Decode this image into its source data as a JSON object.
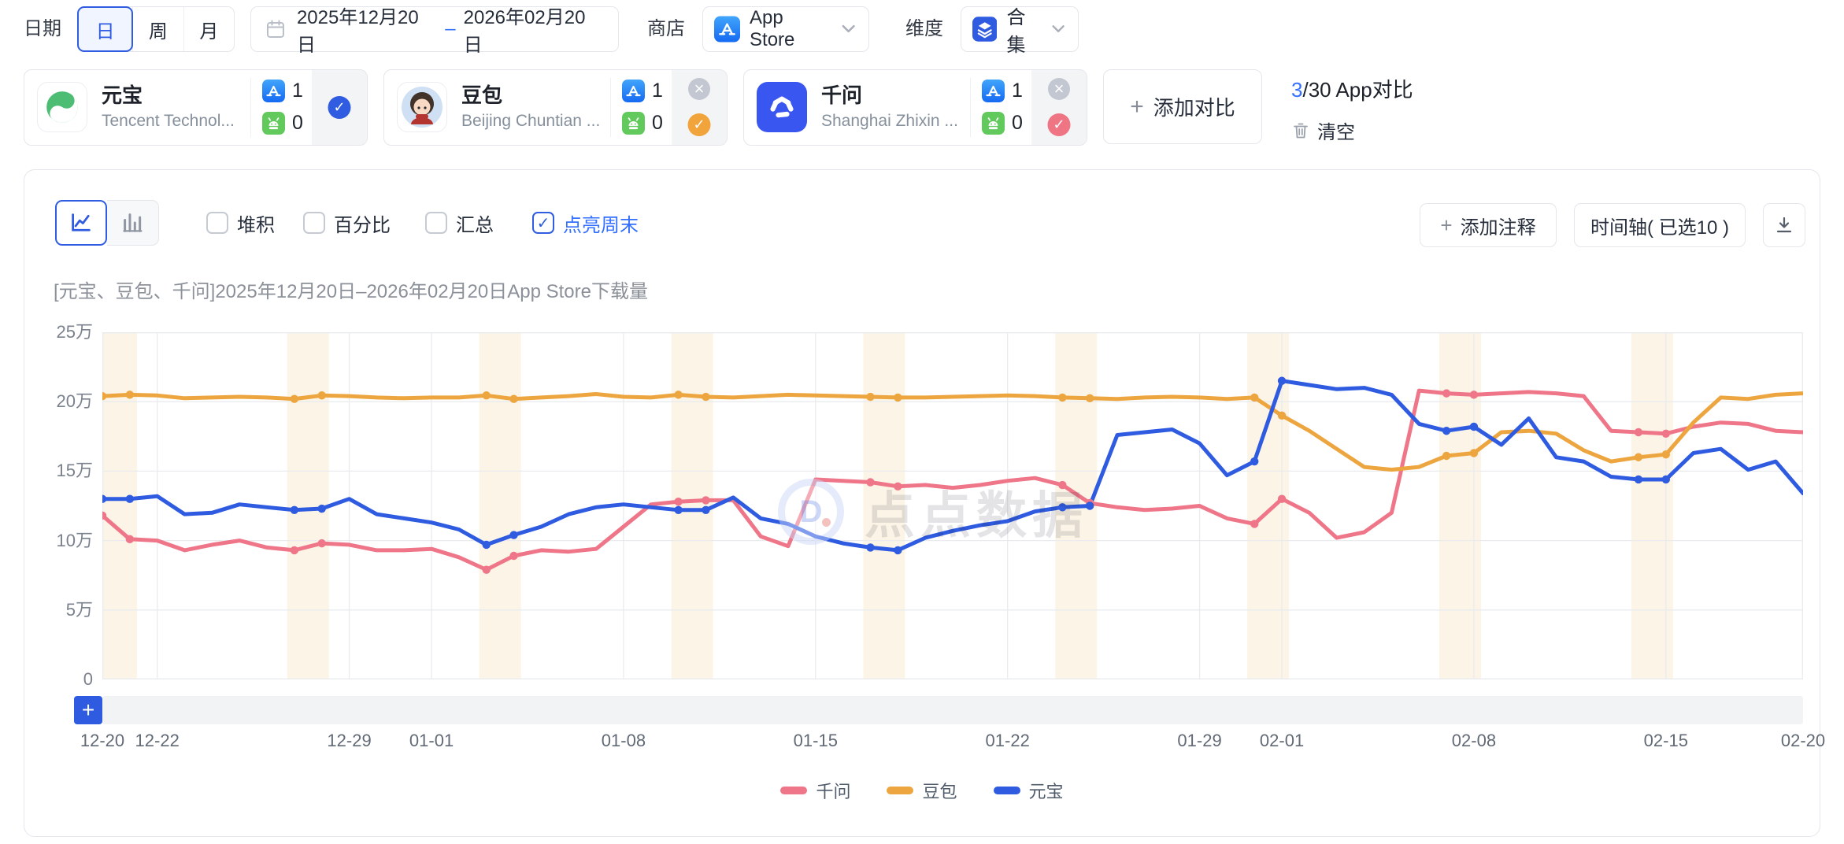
{
  "colors": {
    "accent_text": "#3370ff",
    "accent": "#2f5ce0",
    "series_qianwen": "#ee7688",
    "series_doubao": "#eda63f",
    "series_yuanbao": "#2e5be0",
    "weekend_band": "#fcf4e6"
  },
  "icons": {
    "plus": "+",
    "close": "×",
    "check": "✓"
  },
  "topbar": {
    "date_label": "日期",
    "granularity": [
      {
        "label": "日",
        "selected": true
      },
      {
        "label": "周",
        "selected": false
      },
      {
        "label": "月",
        "selected": false
      }
    ],
    "range": {
      "start": "2025年12月20日",
      "dash": "–",
      "end": "2026年02月20日"
    },
    "store_label": "商店",
    "store_value": "App Store",
    "dimension_label": "维度",
    "dimension_value": "合集"
  },
  "apps": [
    {
      "name": "元宝",
      "company": "Tencent Technol...",
      "ios": "1",
      "android": "0",
      "check_color": "#2f5ce0",
      "closable": false
    },
    {
      "name": "豆包",
      "company": "Beijing Chuntian ...",
      "ios": "1",
      "android": "0",
      "check_color": "#f0a43b",
      "closable": true
    },
    {
      "name": "千问",
      "company": "Shanghai Zhixin ...",
      "ios": "1",
      "android": "0",
      "check_color": "#ef7585",
      "closable": true
    }
  ],
  "compare": {
    "add_label": "添加对比",
    "current": "3",
    "rest": "/30 App对比",
    "clear": "清空"
  },
  "chart_toolbar": {
    "checkboxes": [
      {
        "label": "堆积",
        "checked": false
      },
      {
        "label": "百分比",
        "checked": false
      },
      {
        "label": "汇总",
        "checked": false
      },
      {
        "label": "点亮周末",
        "checked": true
      }
    ],
    "annotate": "添加注释",
    "timeline": "时间轴( 已选10 )"
  },
  "watermark": {
    "text": "点点数据"
  },
  "chart_data": {
    "type": "line",
    "title": "[元宝、豆包、千问]2025年12月20日–2026年02月20日App Store下载量",
    "unit": "万",
    "ylim": [
      0,
      25
    ],
    "grid": true,
    "grid_color": "#e9ebef",
    "weekend_color": "#fcf4e6",
    "legend_position": "bottom",
    "yticks": [
      {
        "v": 0,
        "label": "0"
      },
      {
        "v": 5,
        "label": "5万"
      },
      {
        "v": 10,
        "label": "10万"
      },
      {
        "v": 15,
        "label": "15万"
      },
      {
        "v": 20,
        "label": "20万"
      },
      {
        "v": 25,
        "label": "25万"
      }
    ],
    "x": [
      "12-20",
      "12-21",
      "12-22",
      "12-23",
      "12-24",
      "12-25",
      "12-26",
      "12-27",
      "12-28",
      "12-29",
      "12-30",
      "12-31",
      "01-01",
      "01-02",
      "01-03",
      "01-04",
      "01-05",
      "01-06",
      "01-07",
      "01-08",
      "01-09",
      "01-10",
      "01-11",
      "01-12",
      "01-13",
      "01-14",
      "01-15",
      "01-16",
      "01-17",
      "01-18",
      "01-19",
      "01-20",
      "01-21",
      "01-22",
      "01-23",
      "01-24",
      "01-25",
      "01-26",
      "01-27",
      "01-28",
      "01-29",
      "01-30",
      "01-31",
      "02-01",
      "02-02",
      "02-03",
      "02-04",
      "02-05",
      "02-06",
      "02-07",
      "02-08",
      "02-09",
      "02-10",
      "02-11",
      "02-12",
      "02-13",
      "02-14",
      "02-15",
      "02-16",
      "02-17",
      "02-18",
      "02-19",
      "02-20"
    ],
    "x_tick_indices": [
      0,
      2,
      9,
      12,
      19,
      26,
      33,
      40,
      43,
      50,
      57,
      62
    ],
    "weekend_start_indices": [
      0,
      7,
      14,
      21,
      28,
      35,
      42,
      49,
      56
    ],
    "series": [
      {
        "name": "千问",
        "color": "#ee7688",
        "values": [
          11.8,
          10.1,
          10.0,
          9.3,
          9.7,
          10.0,
          9.5,
          9.3,
          9.8,
          9.7,
          9.3,
          9.3,
          9.4,
          8.8,
          7.9,
          8.9,
          9.3,
          9.2,
          9.4,
          11.0,
          12.6,
          12.8,
          12.9,
          12.9,
          10.3,
          9.6,
          14.4,
          14.3,
          14.2,
          13.9,
          14.0,
          13.8,
          14.0,
          14.3,
          14.5,
          14.0,
          12.7,
          12.4,
          12.2,
          12.3,
          12.5,
          11.6,
          11.2,
          13.0,
          12.0,
          10.2,
          10.6,
          12.0,
          20.8,
          20.6,
          20.5,
          20.6,
          20.7,
          20.6,
          20.4,
          17.9,
          17.8,
          17.7,
          18.2,
          18.5,
          18.4,
          17.9,
          17.8
        ]
      },
      {
        "name": "豆包",
        "color": "#eda63f",
        "values": [
          20.4,
          20.5,
          20.45,
          20.25,
          20.3,
          20.35,
          20.3,
          20.2,
          20.45,
          20.4,
          20.3,
          20.25,
          20.3,
          20.3,
          20.45,
          20.2,
          20.3,
          20.4,
          20.55,
          20.35,
          20.3,
          20.5,
          20.35,
          20.3,
          20.4,
          20.5,
          20.45,
          20.4,
          20.35,
          20.3,
          20.3,
          20.35,
          20.4,
          20.45,
          20.4,
          20.3,
          20.25,
          20.2,
          20.3,
          20.35,
          20.3,
          20.2,
          20.3,
          19.0,
          17.9,
          16.6,
          15.3,
          15.1,
          15.3,
          16.1,
          16.3,
          17.8,
          17.9,
          17.7,
          16.5,
          15.7,
          16.0,
          16.2,
          18.5,
          20.3,
          20.2,
          20.5,
          20.6
        ]
      },
      {
        "name": "元宝",
        "color": "#2e5be0",
        "values": [
          13.0,
          13.0,
          13.2,
          11.9,
          12.0,
          12.6,
          12.4,
          12.2,
          12.3,
          13.0,
          11.9,
          11.6,
          11.3,
          10.8,
          9.7,
          10.4,
          11.0,
          11.9,
          12.4,
          12.6,
          12.4,
          12.2,
          12.2,
          13.1,
          11.6,
          11.2,
          10.3,
          9.8,
          9.5,
          9.3,
          10.2,
          10.7,
          11.1,
          11.4,
          12.1,
          12.4,
          12.5,
          17.6,
          17.8,
          18.0,
          17.0,
          14.7,
          15.7,
          21.5,
          21.2,
          20.9,
          21.0,
          20.5,
          18.4,
          17.9,
          18.2,
          16.9,
          18.8,
          16.0,
          15.7,
          14.6,
          14.4,
          14.4,
          16.3,
          16.6,
          15.1,
          15.7,
          13.4
        ]
      }
    ]
  }
}
